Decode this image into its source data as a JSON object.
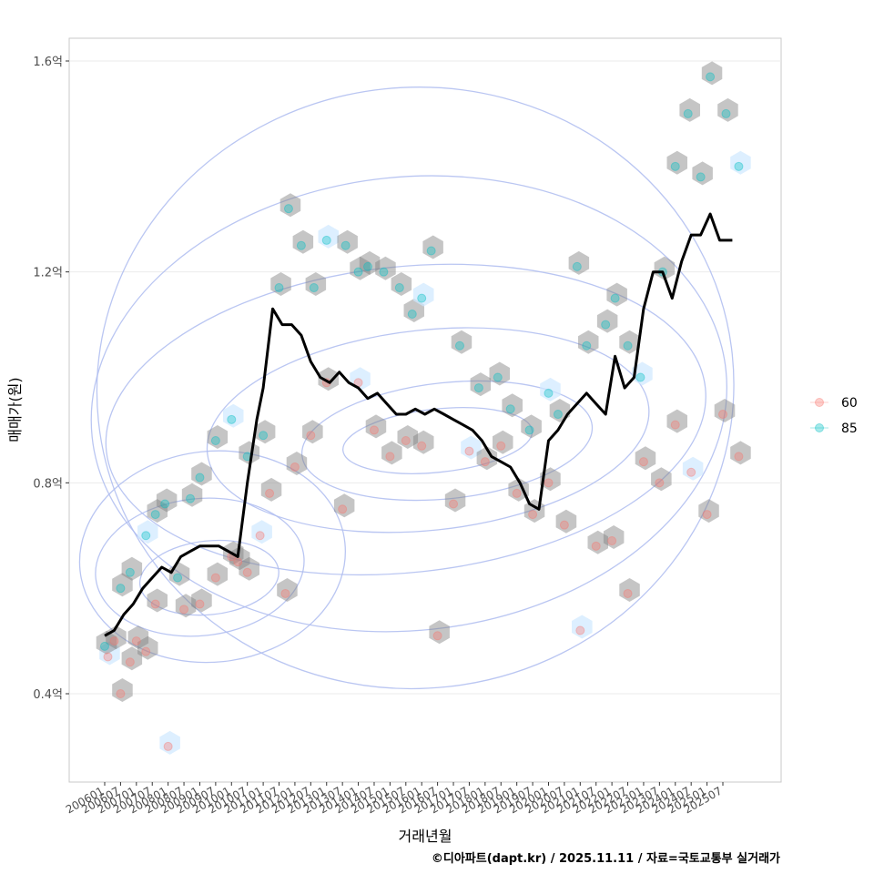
{
  "chart_data": {
    "type": "scatter",
    "title": "",
    "xlabel": "거래년월",
    "ylabel": "매매가(원)",
    "caption": "©디아파트(dapt.kr) / 2025.11.11 / 자료=국토교통부 실거래가",
    "x_range": [
      2005.25,
      2026.5
    ],
    "ylim": [
      0.25,
      1.66
    ],
    "y_ticks": [
      {
        "value": 0.4,
        "label": "0.4억"
      },
      {
        "value": 0.8,
        "label": "0.8억"
      },
      {
        "value": 1.2,
        "label": "1.2억"
      },
      {
        "value": 1.6,
        "label": "1.6억"
      }
    ],
    "x_tick_labels": [
      "200601",
      "200607",
      "200701",
      "200707",
      "200801",
      "200807",
      "200901",
      "200907",
      "201001",
      "201007",
      "201101",
      "201107",
      "201201",
      "201207",
      "201301",
      "201307",
      "201401",
      "201407",
      "201501",
      "201507",
      "201601",
      "201607",
      "201701",
      "201707",
      "201801",
      "201807",
      "201901",
      "201907",
      "202001",
      "202007",
      "202101",
      "202107",
      "202201",
      "202207",
      "202301",
      "202307",
      "202401",
      "202407",
      "202501",
      "202507"
    ],
    "legend": {
      "position": "right",
      "entries": [
        {
          "label": "60",
          "color": "#F8766D"
        },
        {
          "label": "85",
          "color": "#00BFC4"
        }
      ]
    },
    "colors": {
      "line": "#000000",
      "hex": "#7f7f7f",
      "hex_light": "#cfe8ff",
      "contour": "#aebcf0"
    },
    "line_series": {
      "name": "trend",
      "x": [
        2006.0,
        2006.3,
        2006.6,
        2006.9,
        2007.2,
        2007.5,
        2007.8,
        2008.1,
        2008.4,
        2008.7,
        2009.0,
        2009.3,
        2009.6,
        2009.9,
        2010.2,
        2010.5,
        2010.8,
        2011.0,
        2011.3,
        2011.6,
        2011.9,
        2012.2,
        2012.5,
        2012.8,
        2013.1,
        2013.4,
        2013.7,
        2014.0,
        2014.3,
        2014.6,
        2014.9,
        2015.2,
        2015.5,
        2015.8,
        2016.1,
        2016.4,
        2016.7,
        2017.0,
        2017.3,
        2017.6,
        2017.9,
        2018.2,
        2018.5,
        2018.8,
        2019.1,
        2019.4,
        2019.7,
        2020.0,
        2020.3,
        2020.6,
        2020.9,
        2021.2,
        2021.5,
        2021.8,
        2022.1,
        2022.4,
        2022.7,
        2023.0,
        2023.3,
        2023.6,
        2023.9,
        2024.2,
        2024.5,
        2024.8,
        2025.1,
        2025.4,
        2025.7,
        2025.8
      ],
      "y": [
        0.51,
        0.52,
        0.55,
        0.57,
        0.6,
        0.62,
        0.64,
        0.63,
        0.66,
        0.67,
        0.68,
        0.68,
        0.68,
        0.67,
        0.66,
        0.8,
        0.92,
        0.98,
        1.13,
        1.1,
        1.1,
        1.08,
        1.03,
        1.0,
        0.99,
        1.01,
        0.99,
        0.98,
        0.96,
        0.97,
        0.95,
        0.93,
        0.93,
        0.94,
        0.93,
        0.94,
        0.93,
        0.92,
        0.91,
        0.9,
        0.88,
        0.85,
        0.84,
        0.83,
        0.8,
        0.76,
        0.75,
        0.88,
        0.9,
        0.93,
        0.95,
        0.97,
        0.95,
        0.93,
        1.04,
        0.98,
        1.0,
        1.13,
        1.2,
        1.2,
        1.15,
        1.22,
        1.27,
        1.27,
        1.31,
        1.26,
        1.26,
        1.26
      ],
      "note": "approximate smoothed median line"
    },
    "series": [
      {
        "name": "60",
        "x": [
          2006.1,
          2006.3,
          2006.5,
          2006.8,
          2007.0,
          2007.3,
          2007.6,
          2008.0,
          2008.5,
          2009.0,
          2009.5,
          2010.0,
          2010.2,
          2010.5,
          2010.9,
          2011.2,
          2011.7,
          2012.0,
          2012.5,
          2013.0,
          2013.5,
          2014.0,
          2014.5,
          2015.0,
          2015.5,
          2016.0,
          2016.5,
          2017.0,
          2017.5,
          2018.0,
          2018.5,
          2019.0,
          2019.5,
          2020.0,
          2020.5,
          2021.0,
          2021.5,
          2022.0,
          2022.5,
          2023.0,
          2023.5,
          2024.0,
          2024.5,
          2025.0,
          2025.5,
          2026.0
        ],
        "y": [
          0.47,
          0.5,
          0.4,
          0.46,
          0.5,
          0.48,
          0.57,
          0.3,
          0.56,
          0.57,
          0.62,
          0.66,
          0.65,
          0.63,
          0.7,
          0.78,
          0.59,
          0.83,
          0.89,
          0.99,
          0.75,
          0.99,
          0.9,
          0.85,
          0.88,
          0.87,
          0.51,
          0.76,
          0.86,
          0.84,
          0.87,
          0.78,
          0.74,
          0.8,
          0.72,
          0.52,
          0.68,
          0.69,
          0.59,
          0.84,
          0.8,
          0.91,
          0.82,
          0.74,
          0.93,
          0.85
        ]
      },
      {
        "name": "85",
        "x": [
          2006.0,
          2006.5,
          2006.8,
          2007.3,
          2007.6,
          2007.9,
          2008.3,
          2008.7,
          2009.0,
          2009.5,
          2010.0,
          2010.5,
          2011.0,
          2011.5,
          2011.8,
          2012.2,
          2012.6,
          2013.0,
          2013.6,
          2014.0,
          2014.3,
          2014.8,
          2015.3,
          2015.7,
          2016.0,
          2016.3,
          2017.2,
          2017.8,
          2018.4,
          2018.8,
          2019.4,
          2020.0,
          2020.3,
          2020.9,
          2021.2,
          2021.8,
          2022.1,
          2022.5,
          2022.9,
          2023.6,
          2024.0,
          2024.4,
          2024.8,
          2025.1,
          2025.6,
          2026.0
        ],
        "y": [
          0.49,
          0.6,
          0.63,
          0.7,
          0.74,
          0.76,
          0.62,
          0.77,
          0.81,
          0.88,
          0.92,
          0.85,
          0.89,
          1.17,
          1.32,
          1.25,
          1.17,
          1.26,
          1.25,
          1.2,
          1.21,
          1.2,
          1.17,
          1.12,
          1.15,
          1.24,
          1.06,
          0.98,
          1.0,
          0.94,
          0.9,
          0.97,
          0.93,
          1.21,
          1.06,
          1.1,
          1.15,
          1.06,
          1.0,
          1.2,
          1.4,
          1.5,
          1.38,
          1.57,
          1.5,
          1.4
        ]
      }
    ]
  }
}
